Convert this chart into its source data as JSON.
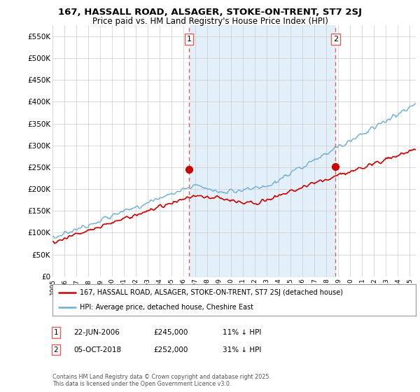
{
  "title": "167, HASSALL ROAD, ALSAGER, STOKE-ON-TRENT, ST7 2SJ",
  "subtitle": "Price paid vs. HM Land Registry's House Price Index (HPI)",
  "ylim": [
    0,
    575000
  ],
  "yticks": [
    0,
    50000,
    100000,
    150000,
    200000,
    250000,
    300000,
    350000,
    400000,
    450000,
    500000,
    550000
  ],
  "ytick_labels": [
    "£0",
    "£50K",
    "£100K",
    "£150K",
    "£200K",
    "£250K",
    "£300K",
    "£350K",
    "£400K",
    "£450K",
    "£500K",
    "£550K"
  ],
  "hpi_color": "#6baed6",
  "hpi_fill_color": "#d8eaf7",
  "price_color": "#cc0000",
  "marker_color": "#cc0000",
  "vline_color": "#e06060",
  "sale1_date_num": 2006.47,
  "sale1_price": 245000,
  "sale2_date_num": 2018.76,
  "sale2_price": 252000,
  "legend_label_price": "167, HASSALL ROAD, ALSAGER, STOKE-ON-TRENT, ST7 2SJ (detached house)",
  "legend_label_hpi": "HPI: Average price, detached house, Cheshire East",
  "table_row1": [
    "1",
    "22-JUN-2006",
    "£245,000",
    "11% ↓ HPI"
  ],
  "table_row2": [
    "2",
    "05-OCT-2018",
    "£252,000",
    "31% ↓ HPI"
  ],
  "footnote": "Contains HM Land Registry data © Crown copyright and database right 2025.\nThis data is licensed under the Open Government Licence v3.0.",
  "background_color": "#ffffff",
  "grid_color": "#cccccc",
  "xlim_start": 1995,
  "xlim_end": 2025.5
}
